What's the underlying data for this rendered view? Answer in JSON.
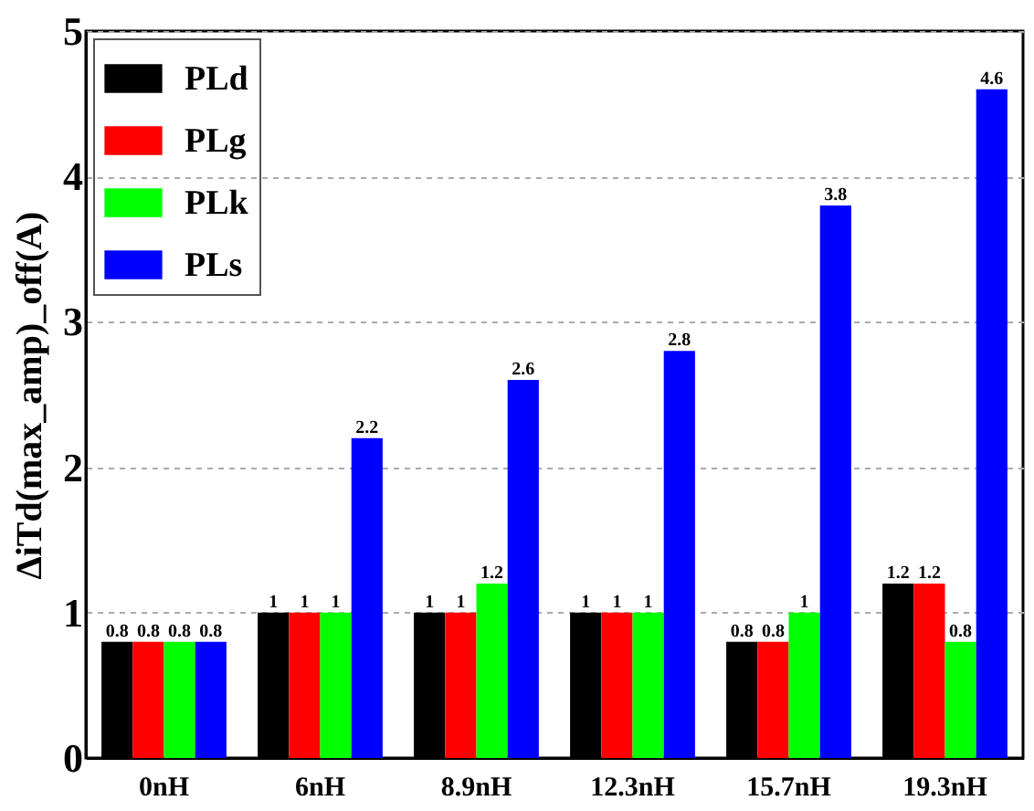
{
  "chart_data": {
    "type": "bar",
    "categories": [
      "0nH",
      "6nH",
      "8.9nH",
      "12.3nH",
      "15.7nH",
      "19.3nH"
    ],
    "ylabel": "ΔiTd(max_amp)_off(A)",
    "series": [
      {
        "name": "PLd",
        "color": "#000000",
        "values": [
          0.8,
          1,
          1,
          1,
          0.8,
          1.2
        ]
      },
      {
        "name": "PLg",
        "color": "#ff0000",
        "values": [
          0.8,
          1,
          1,
          1,
          0.8,
          1.2
        ]
      },
      {
        "name": "PLk",
        "color": "#00ff00",
        "values": [
          0.8,
          1,
          1.2,
          1,
          1,
          0.8
        ]
      },
      {
        "name": "PLs",
        "color": "#0000ff",
        "values": [
          0.8,
          2.2,
          2.6,
          2.8,
          3.8,
          4.6
        ]
      }
    ],
    "ylim": [
      0,
      5
    ],
    "yticks": [
      0,
      1,
      2,
      3,
      4,
      5
    ],
    "grid": "y",
    "legend": "top left",
    "data_labels": true
  }
}
